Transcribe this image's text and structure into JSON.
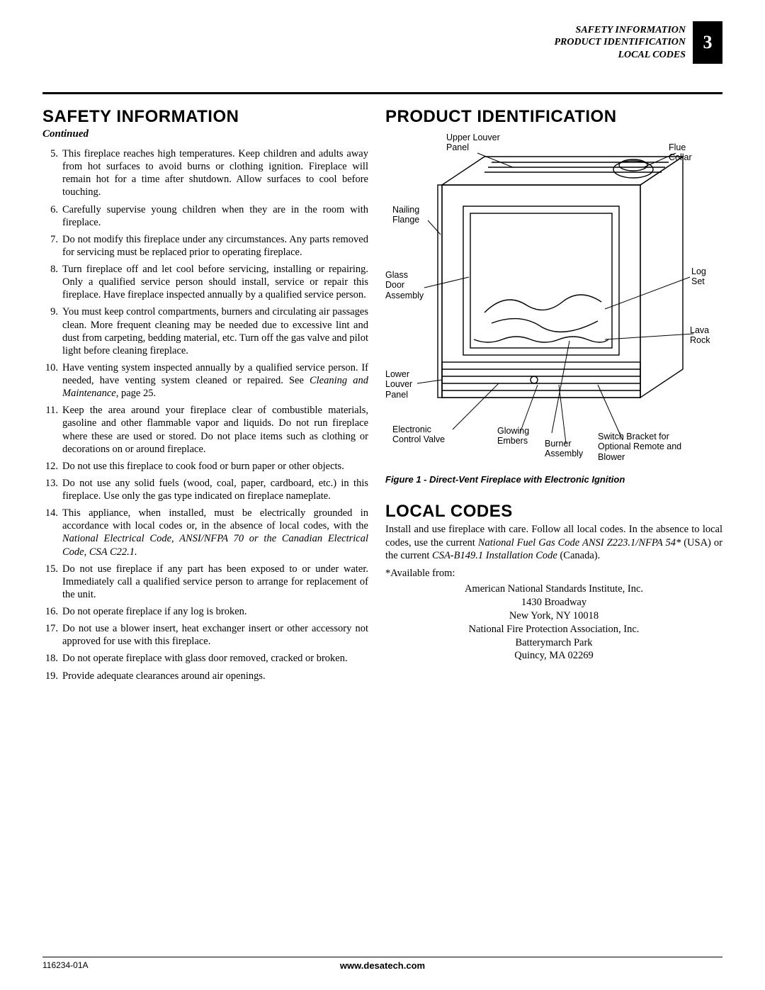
{
  "header": {
    "lines": [
      "SAFETY INFORMATION",
      "PRODUCT IDENTIFICATION",
      "LOCAL CODES"
    ],
    "page": "3"
  },
  "left": {
    "title": "SAFETY INFORMATION",
    "continued": "Continued",
    "items": [
      {
        "n": "5.",
        "t": "This fireplace reaches high temperatures. Keep children and adults away from hot surfaces to avoid burns or clothing ignition. Fireplace will remain hot for a time after shutdown. Allow surfaces to cool before touching."
      },
      {
        "n": "6.",
        "t": "Carefully supervise young children when they are in the room with fireplace."
      },
      {
        "n": "7.",
        "t": "Do not modify this fireplace under any circumstances. Any parts removed for servicing must be replaced prior to operating fireplace."
      },
      {
        "n": "8.",
        "t": "Turn fireplace off and let cool before servicing, installing or repairing. Only a qualified service person should install, service or repair this fireplace. Have fireplace inspected annually by a qualified service person."
      },
      {
        "n": "9.",
        "t": "You must keep control compartments, burners and circulating air passages clean. More frequent cleaning may be needed due to excessive lint and dust from carpeting, bedding material, etc. Turn off the gas valve and pilot light before cleaning fireplace."
      },
      {
        "n": "10.",
        "t_pre": "Have venting system inspected annually by a qualified service person. If needed, have venting system cleaned or repaired. See ",
        "t_em": "Cleaning and Maintenance,",
        "t_post": " page 25."
      },
      {
        "n": "11.",
        "t": "Keep the area around your fireplace clear of combustible materials, gasoline and other flammable vapor and liquids. Do not run fireplace where these are used or stored. Do not place items such as clothing or decorations on or around fireplace."
      },
      {
        "n": "12.",
        "t": "Do not use this fireplace to cook food or burn paper or other objects."
      },
      {
        "n": "13.",
        "t": "Do not use any solid fuels (wood, coal, paper, cardboard, etc.) in this fireplace. Use only the gas type indicated on fireplace nameplate."
      },
      {
        "n": "14.",
        "t_pre": "This appliance, when installed, must be electrically grounded in accordance with local codes or, in the absence of local codes, with the ",
        "t_em": "National Electrical Code, ANSI/NFPA 70 or the Canadian Electrical Code, CSA C22.1.",
        "t_post": ""
      },
      {
        "n": "15.",
        "t": "Do not use fireplace if any part has been exposed to or under water. Immediately call a qualified service person to arrange for replacement of the unit."
      },
      {
        "n": "16.",
        "t": "Do not operate fireplace if any log is broken."
      },
      {
        "n": "17.",
        "t": "Do not use a blower insert, heat exchanger insert or other accessory not approved for use with this fireplace."
      },
      {
        "n": "18.",
        "t": "Do not operate fireplace with glass door removed, cracked or broken."
      },
      {
        "n": "19.",
        "t": "Provide adequate clearances around air openings."
      }
    ]
  },
  "right": {
    "title": "PRODUCT IDENTIFICATION",
    "labels": {
      "upper_louver": "Upper Louver\nPanel",
      "flue_collar": "Flue Collar",
      "nailing_flange": "Nailing\nFlange",
      "glass_door": "Glass\nDoor\nAssembly",
      "log_set": "Log\nSet",
      "lava_rock": "Lava\nRock",
      "lower_louver": "Lower\nLouver\nPanel",
      "elec_valve": "Electronic\nControl Valve",
      "glowing_embers": "Glowing\nEmbers",
      "burner": "Burner\nAssembly",
      "switch": "Switch Bracket for\nOptional Remote and\nBlower"
    },
    "figcap": "Figure 1 - Direct-Vent Fireplace with Electronic Ignition",
    "local_title": "LOCAL CODES",
    "local_body_pre": "Install and use fireplace with care. Follow all local codes. In the absence to local codes, use the current ",
    "local_em1": "National Fuel Gas Code ANSI Z223.1/NFPA 54*",
    "local_mid": " (USA) or the current ",
    "local_em2": "CSA-B149.1 Installation Code",
    "local_post": " (Canada).",
    "avail": "*Available from:",
    "addr": [
      "American National Standards Institute, Inc.",
      "1430 Broadway",
      "New York, NY 10018",
      "National Fire Protection Association, Inc.",
      "Batterymarch Park",
      "Quincy, MA 02269"
    ]
  },
  "footer": {
    "doc": "116234-01A",
    "site": "www.desatech.com"
  }
}
